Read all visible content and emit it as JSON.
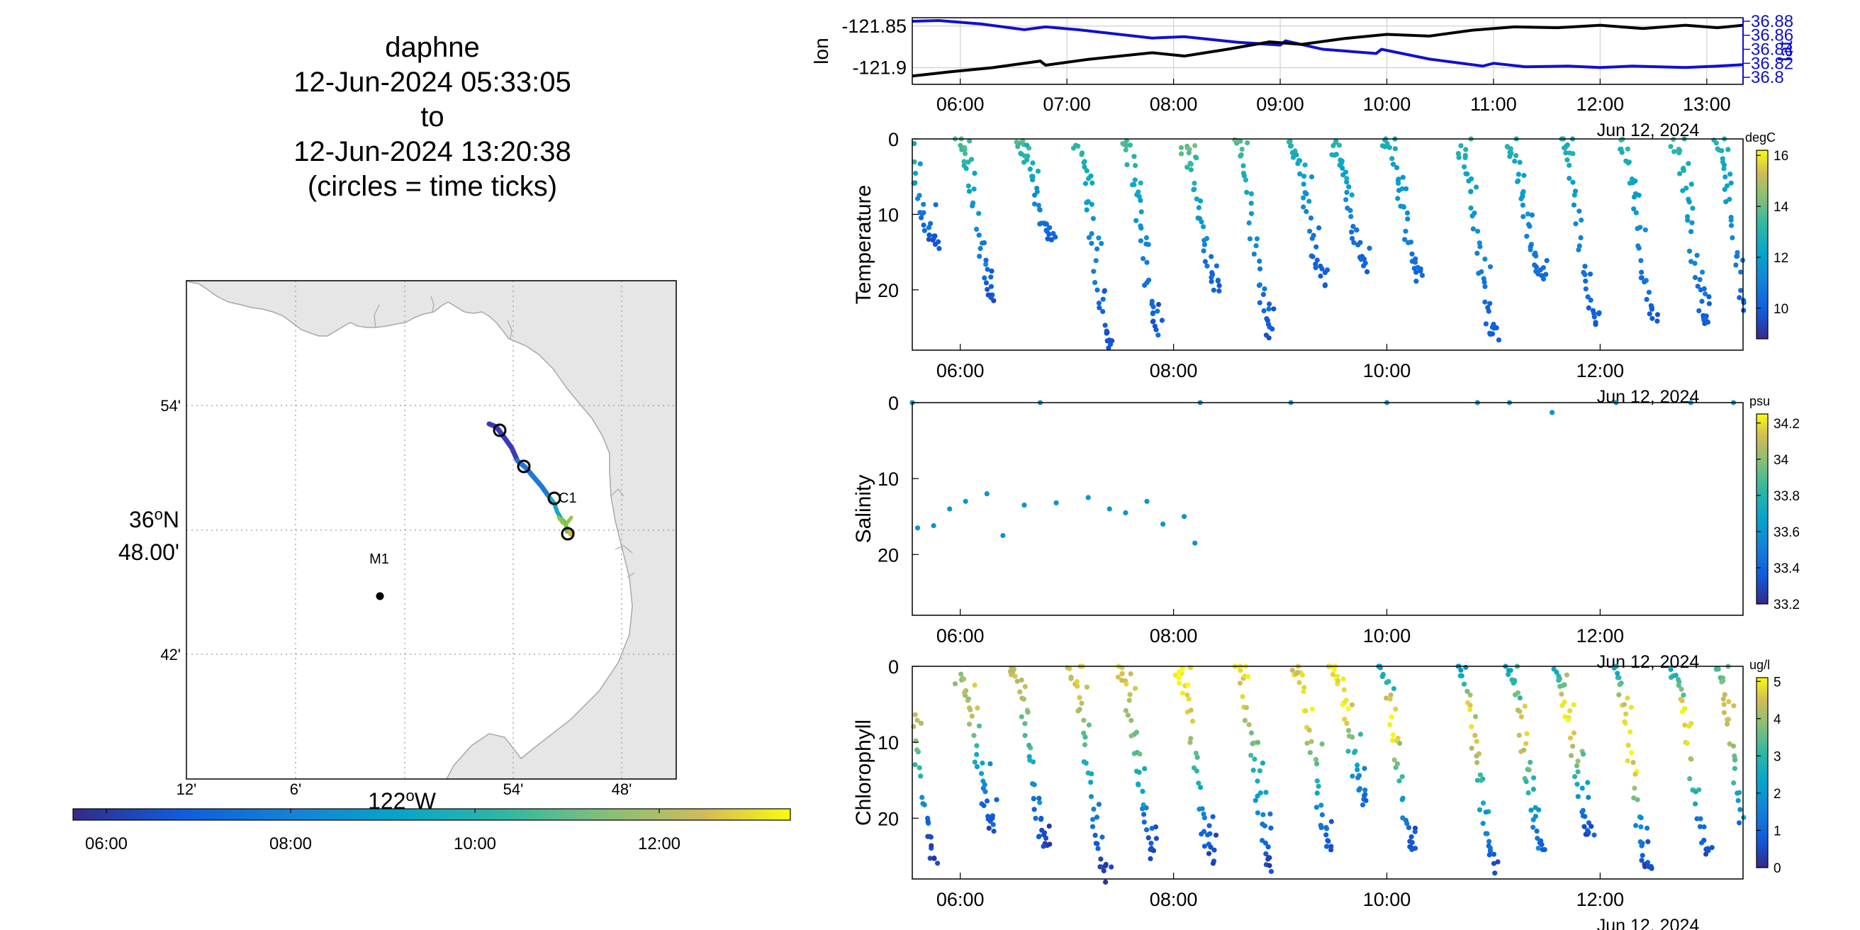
{
  "title": {
    "lines": [
      "daphne",
      "12-Jun-2024 05:33:05",
      "to",
      "12-Jun-2024 13:20:38",
      "(circles = time ticks)"
    ]
  },
  "colors": {
    "lon": "#000000",
    "lat": "#1010d0",
    "land": "#e6e6e6",
    "grid": "#b0b0b0",
    "track_colormap": "parula"
  },
  "map": {
    "lat_ticks": [
      "54'",
      "48.00'",
      "42'"
    ],
    "lat_deg_label": "36",
    "lat_hemi": "N",
    "lon_ticks": [
      "12'",
      "6'",
      "54'",
      "48'"
    ],
    "lon_deg_label": "122",
    "lon_hemi": "W",
    "deg_sup": "o",
    "stations": [
      {
        "label": "M1",
        "lat": 36.747,
        "lon": -122.022
      },
      {
        "label": "C1",
        "lat": 36.797,
        "lon": -121.849
      }
    ],
    "time_colorbar": {
      "ticks": [
        "06:00",
        "08:00",
        "10:00",
        "12:00"
      ],
      "range_hours": [
        5.55,
        13.34
      ]
    }
  },
  "chart_data": [
    {
      "type": "line",
      "title": "",
      "ylabel_left": "lon",
      "ylabel_right": "lat",
      "x_ticks": [
        "06:00",
        "07:00",
        "08:00",
        "09:00",
        "10:00",
        "11:00",
        "12:00",
        "13:00"
      ],
      "date_label": "Jun 12, 2024",
      "y_left_ticks": [
        "-121.85",
        "-121.9"
      ],
      "y_left_range": [
        -121.92,
        -121.84
      ],
      "y_right_ticks": [
        "36.88",
        "36.86",
        "36.84",
        "36.82",
        "36.8"
      ],
      "y_right_range": [
        36.79,
        36.885
      ],
      "series": [
        {
          "name": "lon",
          "x": [
            5.55,
            5.9,
            6.3,
            6.75,
            6.8,
            7.2,
            7.8,
            8.1,
            8.5,
            8.9,
            9.2,
            9.6,
            10.0,
            10.4,
            10.8,
            11.2,
            11.6,
            12.0,
            12.4,
            12.8,
            13.1,
            13.34
          ],
          "y": [
            -121.91,
            -121.905,
            -121.9,
            -121.892,
            -121.897,
            -121.89,
            -121.882,
            -121.886,
            -121.878,
            -121.869,
            -121.872,
            -121.865,
            -121.86,
            -121.862,
            -121.855,
            -121.851,
            -121.852,
            -121.849,
            -121.853,
            -121.849,
            -121.852,
            -121.849
          ]
        },
        {
          "name": "lat",
          "x": [
            5.55,
            5.8,
            6.2,
            6.6,
            6.8,
            7.1,
            7.8,
            8.1,
            8.6,
            9.0,
            9.05,
            9.4,
            9.9,
            9.95,
            10.4,
            10.9,
            11.0,
            11.3,
            11.7,
            12.0,
            12.3,
            12.8,
            13.1,
            13.34
          ],
          "y": [
            36.88,
            36.881,
            36.876,
            36.868,
            36.872,
            36.868,
            36.856,
            36.858,
            36.85,
            36.846,
            36.852,
            36.84,
            36.834,
            36.84,
            36.826,
            36.816,
            36.82,
            36.815,
            36.816,
            36.814,
            36.816,
            36.814,
            36.816,
            36.818
          ]
        }
      ]
    },
    {
      "type": "scatter",
      "ylabel": "Temperature",
      "units": "degC",
      "x_ticks": [
        "06:00",
        "08:00",
        "10:00",
        "12:00"
      ],
      "date_label": "Jun 12, 2024",
      "y_ticks": [
        "0",
        "10",
        "20"
      ],
      "y_range": [
        0,
        28
      ],
      "color_range": [
        8.8,
        16.2
      ],
      "colorbar_ticks": [
        "16",
        "14",
        "12",
        "10"
      ],
      "profiles": [
        {
          "t": 5.6,
          "top": 0.3,
          "bottom": 13.5,
          "ct": 13.6,
          "cb": 9.8
        },
        {
          "t": 6.15,
          "top": 0.5,
          "bottom": 20.5,
          "ct": 13.8,
          "cb": 9.8
        },
        {
          "t": 6.7,
          "top": 0.3,
          "bottom": 13.5,
          "ct": 13.8,
          "cb": 9.9
        },
        {
          "t": 7.25,
          "top": 0.8,
          "bottom": 27.5,
          "ct": 13.4,
          "cb": 9.6
        },
        {
          "t": 7.7,
          "top": 0.5,
          "bottom": 25.0,
          "ct": 13.6,
          "cb": 9.8
        },
        {
          "t": 8.25,
          "top": 1.5,
          "bottom": 19.5,
          "ct": 14.0,
          "cb": 10.0
        },
        {
          "t": 8.75,
          "top": 0.2,
          "bottom": 25.5,
          "ct": 13.8,
          "cb": 9.8
        },
        {
          "t": 9.25,
          "top": 0.2,
          "bottom": 18.5,
          "ct": 13.2,
          "cb": 9.8
        },
        {
          "t": 9.65,
          "top": 0.8,
          "bottom": 17.0,
          "ct": 13.0,
          "cb": 9.9
        },
        {
          "t": 10.15,
          "top": 0.3,
          "bottom": 18.5,
          "ct": 12.8,
          "cb": 10.2
        },
        {
          "t": 10.85,
          "top": 1.5,
          "bottom": 26.0,
          "ct": 12.8,
          "cb": 10.0
        },
        {
          "t": 11.3,
          "top": 1.0,
          "bottom": 18.5,
          "ct": 13.0,
          "cb": 10.3
        },
        {
          "t": 11.8,
          "top": 0.2,
          "bottom": 24.0,
          "ct": 13.0,
          "cb": 9.9
        },
        {
          "t": 12.35,
          "top": 0.5,
          "bottom": 23.5,
          "ct": 13.3,
          "cb": 9.9
        },
        {
          "t": 12.85,
          "top": 0.5,
          "bottom": 24.5,
          "ct": 13.4,
          "cb": 10.0
        },
        {
          "t": 13.25,
          "top": 0.8,
          "bottom": 24.5,
          "ct": 13.0,
          "cb": 10.0
        }
      ]
    },
    {
      "type": "scatter",
      "ylabel": "Salinity",
      "units": "psu",
      "x_ticks": [
        "06:00",
        "08:00",
        "10:00",
        "12:00"
      ],
      "date_label": "Jun 12, 2024",
      "y_ticks": [
        "0",
        "10",
        "20"
      ],
      "y_range": [
        0,
        28
      ],
      "color_range": [
        33.2,
        34.25
      ],
      "colorbar_ticks": [
        "34.2",
        "34",
        "33.8",
        "33.6",
        "33.4",
        "33.2"
      ],
      "points": [
        {
          "t": 5.55,
          "d": 0.0,
          "v": 33.62
        },
        {
          "t": 5.6,
          "d": 16.5,
          "v": 33.6
        },
        {
          "t": 5.75,
          "d": 16.2,
          "v": 33.6
        },
        {
          "t": 5.9,
          "d": 14.0,
          "v": 33.6
        },
        {
          "t": 6.05,
          "d": 13.0,
          "v": 33.6
        },
        {
          "t": 6.25,
          "d": 12.0,
          "v": 33.6
        },
        {
          "t": 6.4,
          "d": 17.5,
          "v": 33.6
        },
        {
          "t": 6.6,
          "d": 13.5,
          "v": 33.6
        },
        {
          "t": 6.75,
          "d": 0.0,
          "v": 33.62
        },
        {
          "t": 6.9,
          "d": 13.2,
          "v": 33.6
        },
        {
          "t": 7.2,
          "d": 12.5,
          "v": 33.6
        },
        {
          "t": 7.4,
          "d": 14.0,
          "v": 33.6
        },
        {
          "t": 7.55,
          "d": 14.5,
          "v": 33.6
        },
        {
          "t": 7.75,
          "d": 13.0,
          "v": 33.6
        },
        {
          "t": 7.9,
          "d": 16.0,
          "v": 33.6
        },
        {
          "t": 8.1,
          "d": 15.0,
          "v": 33.6
        },
        {
          "t": 8.2,
          "d": 18.5,
          "v": 33.6
        },
        {
          "t": 8.25,
          "d": 0.0,
          "v": 33.62
        },
        {
          "t": 9.1,
          "d": 0.0,
          "v": 33.62
        },
        {
          "t": 10.0,
          "d": 0.0,
          "v": 33.62
        },
        {
          "t": 10.85,
          "d": 0.0,
          "v": 33.62
        },
        {
          "t": 11.15,
          "d": 0.0,
          "v": 33.62
        },
        {
          "t": 11.55,
          "d": 1.3,
          "v": 33.6
        },
        {
          "t": 12.15,
          "d": 0.0,
          "v": 33.62
        },
        {
          "t": 12.85,
          "d": 0.0,
          "v": 33.62
        },
        {
          "t": 13.25,
          "d": 0.0,
          "v": 33.62
        }
      ]
    },
    {
      "type": "scatter",
      "ylabel": "Chlorophyll",
      "units": "ug/l",
      "x_ticks": [
        "06:00",
        "08:00",
        "10:00",
        "12:00"
      ],
      "date_label": "Jun 12, 2024",
      "y_ticks": [
        "0",
        "10",
        "20"
      ],
      "y_range": [
        0,
        28
      ],
      "color_range": [
        0,
        5.1
      ],
      "colorbar_ticks": [
        "5",
        "4",
        "3",
        "2",
        "1",
        "0"
      ],
      "profiles": [
        {
          "t": 5.6,
          "top": 0.0,
          "bottom": 25.0,
          "cl": [
            4.2,
            4.5,
            3.8,
            2.5,
            1.0,
            0.3
          ]
        },
        {
          "t": 6.15,
          "top": 1.5,
          "bottom": 21.0,
          "cl": [
            4.0,
            4.3,
            3.5,
            2.4,
            1.3,
            0.5
          ]
        },
        {
          "t": 6.65,
          "top": 0.2,
          "bottom": 23.5,
          "cl": [
            4.5,
            4.0,
            3.2,
            2.0,
            1.0,
            0.4
          ]
        },
        {
          "t": 7.2,
          "top": 1.0,
          "bottom": 27.0,
          "cl": [
            4.6,
            4.2,
            3.0,
            2.2,
            1.0,
            0.3
          ]
        },
        {
          "t": 7.65,
          "top": 0.3,
          "bottom": 24.5,
          "cl": [
            4.8,
            4.3,
            3.6,
            2.5,
            1.2,
            0.4
          ]
        },
        {
          "t": 8.2,
          "top": 0.5,
          "bottom": 25.0,
          "cl": [
            5.0,
            4.8,
            3.8,
            2.6,
            1.4,
            0.5
          ]
        },
        {
          "t": 8.75,
          "top": 0.2,
          "bottom": 26.0,
          "cl": [
            4.8,
            4.5,
            3.5,
            2.4,
            1.3,
            0.4
          ]
        },
        {
          "t": 9.3,
          "top": 0.2,
          "bottom": 24.0,
          "cl": [
            4.6,
            5.0,
            4.3,
            2.8,
            1.6,
            0.6
          ]
        },
        {
          "t": 9.65,
          "top": 0.3,
          "bottom": 18.0,
          "cl": [
            4.9,
            5.0,
            4.5,
            3.0,
            1.8,
            1.0
          ]
        },
        {
          "t": 10.1,
          "top": 0.3,
          "bottom": 24.0,
          "cl": [
            2.0,
            4.9,
            4.8,
            3.2,
            1.6,
            0.6
          ]
        },
        {
          "t": 10.85,
          "top": 0.3,
          "bottom": 25.5,
          "cl": [
            2.0,
            4.8,
            4.5,
            3.0,
            1.8,
            0.6
          ]
        },
        {
          "t": 11.3,
          "top": 0.3,
          "bottom": 24.0,
          "cl": [
            2.2,
            4.2,
            4.8,
            3.4,
            2.0,
            0.7
          ]
        },
        {
          "t": 11.75,
          "top": 0.5,
          "bottom": 22.0,
          "cl": [
            2.4,
            5.0,
            4.8,
            3.5,
            1.5,
            0.5
          ]
        },
        {
          "t": 12.3,
          "top": 0.5,
          "bottom": 27.0,
          "cl": [
            2.5,
            4.9,
            5.0,
            4.0,
            1.4,
            0.4
          ]
        },
        {
          "t": 12.85,
          "top": 0.5,
          "bottom": 24.5,
          "cl": [
            2.6,
            5.0,
            4.8,
            3.5,
            1.5,
            0.5
          ]
        },
        {
          "t": 13.25,
          "top": 0.3,
          "bottom": 24.5,
          "cl": [
            3.0,
            4.8,
            4.0,
            3.2,
            1.2,
            0.4
          ]
        }
      ]
    }
  ]
}
